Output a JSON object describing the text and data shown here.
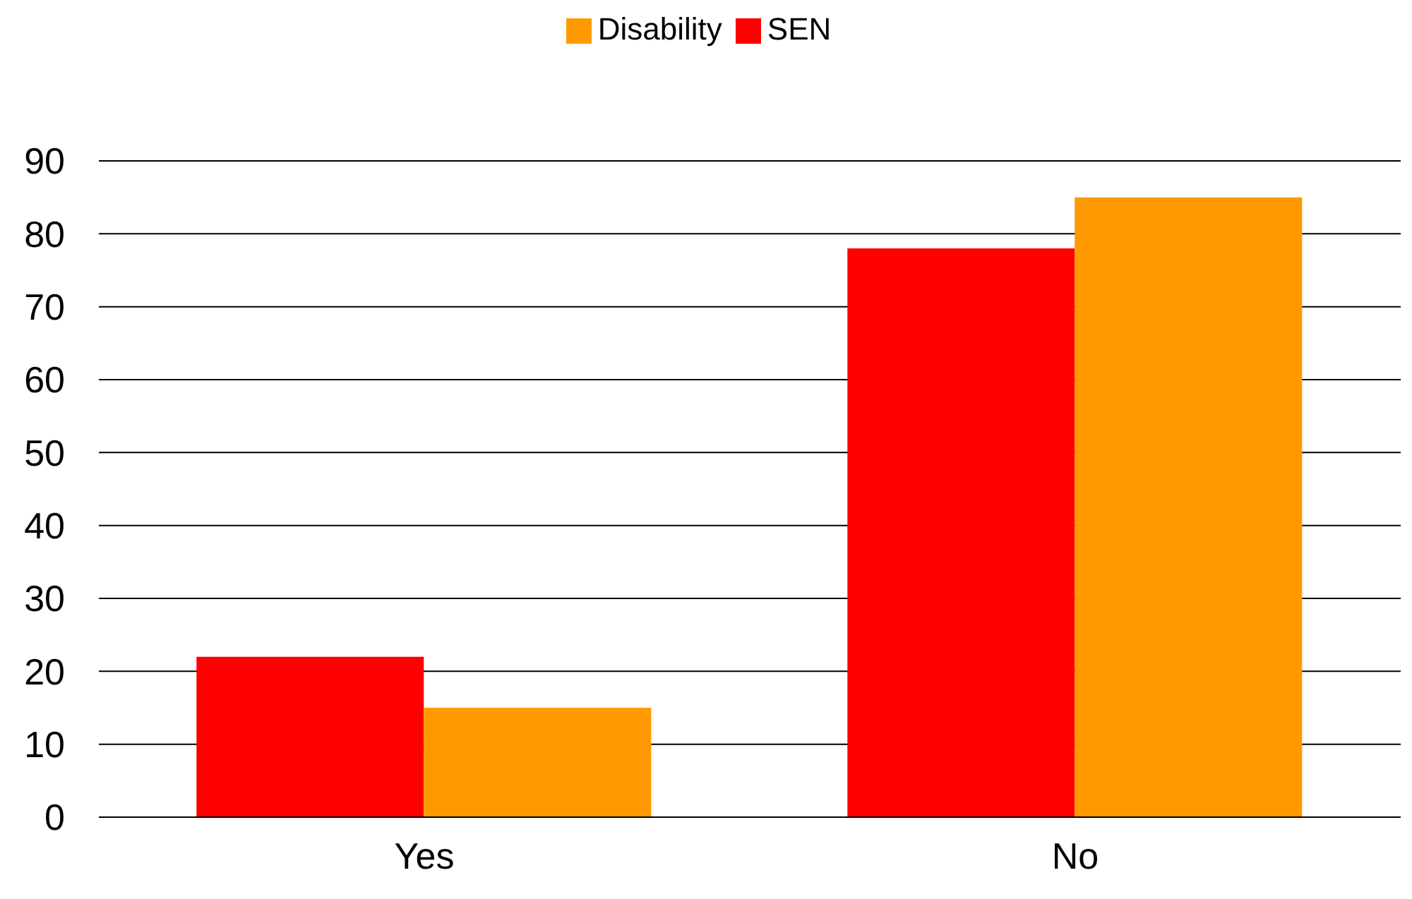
{
  "chart_data": {
    "type": "bar",
    "categories": [
      "Yes",
      "No"
    ],
    "series": [
      {
        "name": "SEN",
        "color": "#ff0000",
        "values": [
          22,
          78
        ]
      },
      {
        "name": "Disability",
        "color": "#ff9900",
        "values": [
          15,
          85
        ]
      }
    ],
    "ylim": [
      0,
      90
    ],
    "yticks": [
      0,
      10,
      20,
      30,
      40,
      50,
      60,
      70,
      80,
      90
    ],
    "grid": "y",
    "legend": "top"
  }
}
